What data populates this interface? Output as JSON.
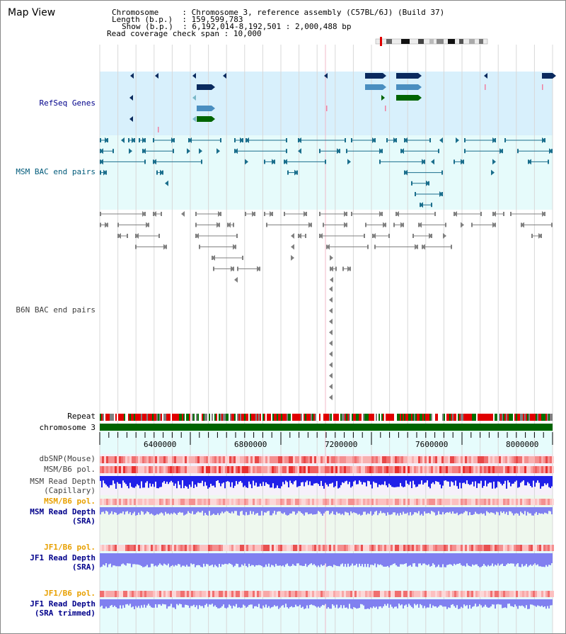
{
  "view_title": "Map View",
  "info": {
    "chromosome_key": "Chromosome",
    "chromosome_val": "Chromosome 3, reference assembly (C57BL/6J) (Build 37)",
    "length_key": "Length (b.p.)",
    "length_val": "159,599,783",
    "show_key": "Show (b.p.)",
    "show_val": "6,192,014-8,192,501 : 2,000,488 bp",
    "coverage_key": "Read coverage check span",
    "coverage_val": "10,000"
  },
  "axis": {
    "ticks": [
      "6400000",
      "6800000",
      "7200000",
      "7600000",
      "8000000"
    ]
  },
  "tracks": {
    "refseq": "RefSeq Genes",
    "msm_bac": "MSM BAC end pairs",
    "b6n_bac": "B6N BAC end pairs",
    "repeat": "Repeat",
    "chromosome": "chromosome 3",
    "dbsnp": "dbSNP(Mouse)",
    "msm_b6_pol_1": "MSM/B6 pol.",
    "msm_depth_cap_1": "MSM Read Depth",
    "msm_depth_cap_2": "(Capillary)",
    "msm_b6_pol_2": "MSM/B6 pol.",
    "msm_depth_sra_1": "MSM Read Depth",
    "msm_depth_sra_2": "(SRA)",
    "jf1_b6_pol_1": "JF1/B6 pol.",
    "jf1_depth_sra_1": "JF1 Read Depth",
    "jf1_depth_sra_2": "(SRA)",
    "jf1_b6_pol_2": "JF1/B6 pol.",
    "jf1_depth_trim_1": "JF1 Read Depth",
    "jf1_depth_trim_2": "(SRA trimmed)"
  },
  "colors": {
    "refseq_bg": "#d8f0fc",
    "msm_bac_bg": "#e6fbfb",
    "lower_bg": "#e6fcfc",
    "sra_bg": "#eef8ee",
    "navy": "#0a2a5e",
    "steel": "#4a8ec0",
    "green": "#006400",
    "teal": "#1a6e8c",
    "grey_feature": "#808080",
    "blue_depth": "#2020e8",
    "periwinkle": "#8080f0",
    "label_navy": "#00008b",
    "label_orange": "#e8a000"
  }
}
